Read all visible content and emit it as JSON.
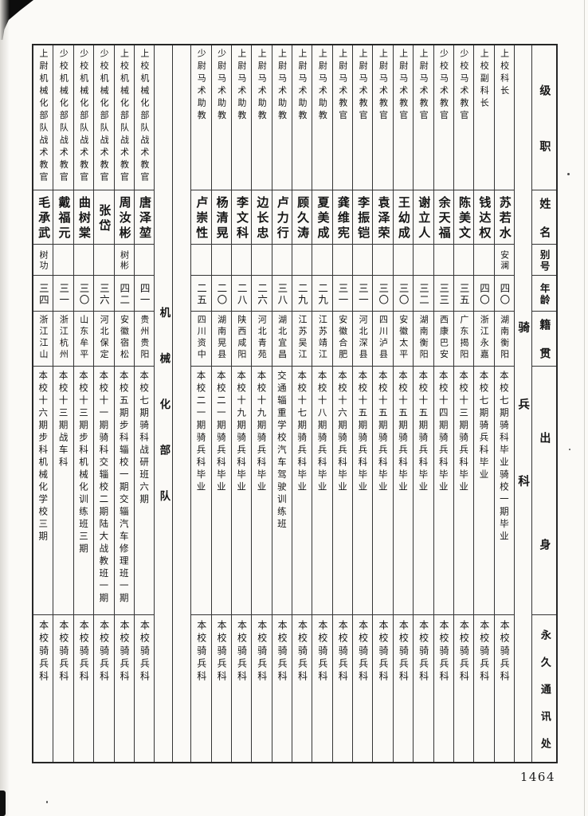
{
  "page": {
    "page_number": "1464"
  },
  "header": {
    "rank": "级职",
    "name": "姓名",
    "alias": "别号",
    "age": "年龄",
    "native": "籍贯",
    "origin": "出身",
    "address": "永久通讯处"
  },
  "columns": [
    {
      "kind": "section",
      "key": "cavalry",
      "label": "骑兵科"
    },
    {
      "kind": "person",
      "rank": "上校科长",
      "name": "苏若水",
      "alias": "安澜",
      "age": "四〇",
      "native": "湖南衡阳",
      "origin": "本校七期骑科毕业骑校一期毕业",
      "address": "本校骑兵科"
    },
    {
      "kind": "person",
      "rank": "上校副科长",
      "name": "钱达权",
      "alias": "",
      "age": "四〇",
      "native": "浙江永嘉",
      "origin": "本校七期骑兵科毕业",
      "address": "本校骑兵科"
    },
    {
      "kind": "person",
      "rank": "少校马术教官",
      "name": "陈美文",
      "alias": "",
      "age": "三五",
      "native": "广东揭阳",
      "origin": "本校十三期骑兵科毕业",
      "address": "本校骑兵科"
    },
    {
      "kind": "person",
      "rank": "少校马术教官",
      "name": "余天福",
      "alias": "",
      "age": "三三",
      "native": "西康巴安",
      "origin": "本校十四期骑兵科毕业",
      "address": "本校骑兵科"
    },
    {
      "kind": "person",
      "rank": "上尉马术教官",
      "name": "谢立人",
      "alias": "",
      "age": "三二",
      "native": "湖南衡阳",
      "origin": "本校十五期骑兵科毕业",
      "address": "本校骑兵科"
    },
    {
      "kind": "person",
      "rank": "上尉马术教官",
      "name": "王幼成",
      "alias": "",
      "age": "三〇",
      "native": "安徽太平",
      "origin": "本校十五期骑兵科毕业",
      "address": "本校骑兵科"
    },
    {
      "kind": "person",
      "rank": "上尉马术教官",
      "name": "袁泽荣",
      "alias": "",
      "age": "三〇",
      "native": "四川泸县",
      "origin": "本校十五期骑兵科毕业",
      "address": "本校骑兵科"
    },
    {
      "kind": "person",
      "rank": "上尉马术教官",
      "name": "李振铠",
      "alias": "",
      "age": "三一",
      "native": "河北深县",
      "origin": "本校十五期骑兵科毕业",
      "address": "本校骑兵科"
    },
    {
      "kind": "person",
      "rank": "上尉马术教官",
      "name": "龚维宪",
      "alias": "",
      "age": "三一",
      "native": "安徽合肥",
      "origin": "本校十六期骑兵科毕业",
      "address": "本校骑兵科"
    },
    {
      "kind": "person",
      "rank": "上尉马术助教",
      "name": "夏美成",
      "alias": "",
      "age": "二九",
      "native": "江苏靖江",
      "origin": "本校十八期骑兵科毕业",
      "address": "本校骑兵科"
    },
    {
      "kind": "person",
      "rank": "上尉马术助教",
      "name": "顾久涛",
      "alias": "",
      "age": "二九",
      "native": "江苏吴江",
      "origin": "本校十七期骑兵科毕业",
      "address": "本校骑兵科"
    },
    {
      "kind": "person",
      "rank": "上尉马术助教",
      "name": "卢力行",
      "alias": "",
      "age": "三八",
      "native": "湖北宜昌",
      "origin": "交通辎重学校汽车驾驶训练班",
      "address": "本校骑兵科"
    },
    {
      "kind": "person",
      "rank": "上尉马术助教",
      "name": "边长忠",
      "alias": "",
      "age": "二六",
      "native": "河北青苑",
      "origin": "本校十九期骑兵科毕业",
      "address": "本校骑兵科"
    },
    {
      "kind": "person",
      "rank": "上尉马术助教",
      "name": "李文科",
      "alias": "",
      "age": "二八",
      "native": "陕西咸阳",
      "origin": "本校十九期骑兵科毕业",
      "address": "本校骑兵科"
    },
    {
      "kind": "person",
      "rank": "少尉马术助教",
      "name": "杨清晃",
      "alias": "",
      "age": "二〇",
      "native": "湖南晃县",
      "origin": "本校二一期骑兵科毕业",
      "address": "本校骑兵科"
    },
    {
      "kind": "person",
      "rank": "少尉马术助教",
      "name": "卢崇性",
      "alias": "",
      "age": "二五",
      "native": "四川资中",
      "origin": "本校二一期骑兵科毕业",
      "address": "本校骑兵科"
    },
    {
      "kind": "section",
      "key": "mechanized",
      "label": "机械化部队"
    },
    {
      "kind": "person",
      "rank": "上校机械化部队战术教官",
      "name": "唐泽堃",
      "alias": "",
      "age": "四一",
      "native": "贵州贵阳",
      "origin": "本校七期骑科战研班六期",
      "address": "本校骑兵科"
    },
    {
      "kind": "person",
      "rank": "上校机械化部队战术教官",
      "name": "周汝彬",
      "alias": "树彬",
      "age": "四二",
      "native": "安徽宿松",
      "origin": "本校五期步科辎校一期交辎汽车修理班一期",
      "address": "本校骑兵科"
    },
    {
      "kind": "person",
      "rank": "少校机械化部队战术教官",
      "name": "张岱",
      "alias": "",
      "age": "三六",
      "native": "河北保定",
      "origin": "本校十一期骑科交辎校二期陆大战教班一期",
      "address": "本校骑兵科"
    },
    {
      "kind": "person",
      "rank": "少校机械化部队战术教官",
      "name": "曲树棠",
      "alias": "",
      "age": "三〇",
      "native": "山东牟平",
      "origin": "本校十三期步科机械化训练班三期",
      "address": "本校骑兵科"
    },
    {
      "kind": "person",
      "rank": "少校机械化部队战术教官",
      "name": "戴福元",
      "alias": "",
      "age": "三一",
      "native": "浙江杭州",
      "origin": "本校十三期战车科",
      "address": "本校骑兵科"
    },
    {
      "kind": "person",
      "rank": "上尉机械化部队战术教官",
      "name": "毛承武",
      "alias": "树功",
      "age": "三四",
      "native": "浙江江山",
      "origin": "本校十六期步科机械化学校三期",
      "address": "本校骑兵科"
    }
  ]
}
